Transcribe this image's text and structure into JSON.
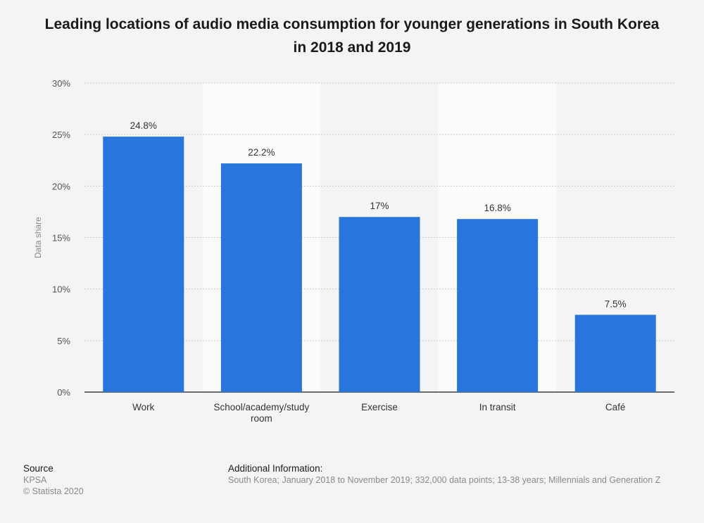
{
  "title": "Leading locations of audio media consumption for younger generations in South Korea in 2018 and 2019",
  "colors": {
    "bar": "#2876dd",
    "band": "#fbfbfb",
    "grid": "#c9c9c9",
    "axis": "#1a1a1a"
  },
  "chart_data": {
    "type": "bar",
    "title": "Leading locations of audio media consumption for younger generations in South Korea in 2018 and 2019",
    "xlabel": "",
    "ylabel": "Data share",
    "categories": [
      "Work",
      "School/academy/study room",
      "Exercise",
      "In transit",
      "Café"
    ],
    "category_lines": [
      [
        "Work"
      ],
      [
        "School/academy/study",
        "room"
      ],
      [
        "Exercise"
      ],
      [
        "In transit"
      ],
      [
        "Café"
      ]
    ],
    "values": [
      24.8,
      22.2,
      17,
      16.8,
      7.5
    ],
    "value_labels": [
      "24.8%",
      "22.2%",
      "17%",
      "16.8%",
      "7.5%"
    ],
    "ylim": [
      0,
      30
    ],
    "yticks": [
      0,
      5,
      10,
      15,
      20,
      25,
      30
    ],
    "ytick_labels": [
      "0%",
      "5%",
      "10%",
      "15%",
      "20%",
      "25%",
      "30%"
    ],
    "grid": true,
    "legend": "none"
  },
  "footer": {
    "source_heading": "Source",
    "source_name": "KPSA",
    "copyright": "© Statista 2020",
    "info_heading": "Additional Information:",
    "info_text": "South Korea; January 2018 to November 2019; 332,000 data points; 13-38 years; Millennials and Generation Z"
  }
}
